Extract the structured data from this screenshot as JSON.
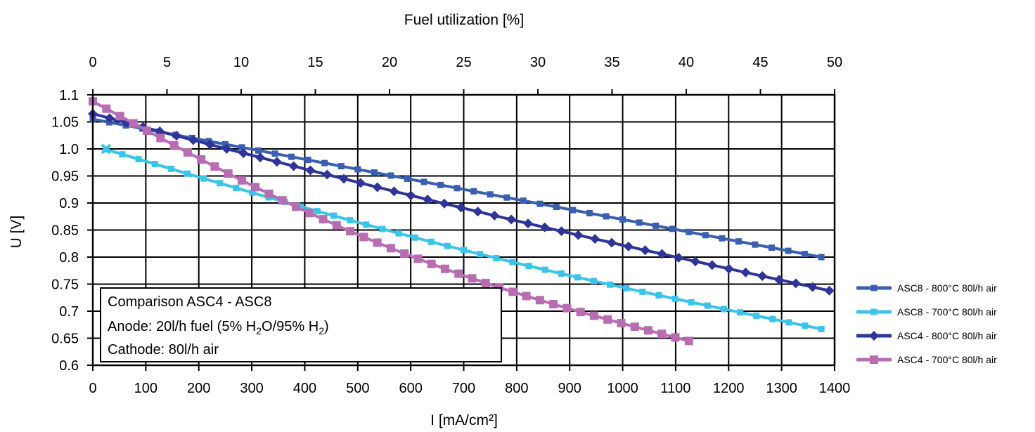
{
  "chart_data": {
    "type": "line",
    "title": "",
    "xlabel": "I [mA/cm²]",
    "x2label": "Fuel utilization [%]",
    "ylabel": "U [V]",
    "xlim": [
      0,
      1400
    ],
    "x2lim": [
      0,
      50
    ],
    "ylim": [
      0.6,
      1.1
    ],
    "x_ticks": [
      "0",
      "100",
      "200",
      "300",
      "400",
      "500",
      "600",
      "700",
      "800",
      "900",
      "1000",
      "1100",
      "1200",
      "1300",
      "1400"
    ],
    "x2_ticks": [
      "0",
      "5",
      "10",
      "15",
      "20",
      "25",
      "30",
      "35",
      "40",
      "45",
      "50"
    ],
    "y_ticks": [
      "0.6",
      "0.65",
      "0.7",
      "0.75",
      "0.8",
      "0.85",
      "0.9",
      "0.95",
      "1.0",
      "1.05",
      "1.1"
    ],
    "grid": true,
    "legend_position": "right",
    "annotation": {
      "line1": "Comparison ASC4 - ASC8",
      "line2_prefix": "Anode: 20l/h fuel (5% H",
      "line2_sub1": "2",
      "line2_mid": "O/95% H",
      "line2_sub2": "2",
      "line2_suffix": ")",
      "line3": "Cathode: 80l/h air"
    },
    "series": [
      {
        "name": "ASC8 - 800°C 80l/h air",
        "color": "#3b5fb0",
        "marker": "square-small",
        "x": [
          0,
          1375
        ],
        "y": [
          1.055,
          0.8
        ],
        "curvature": 0.0
      },
      {
        "name": "ASC8 - 700°C 80l/h air",
        "color": "#3cc3ea",
        "marker": "square-small",
        "x": [
          25,
          1375
        ],
        "y": [
          0.999,
          0.667
        ],
        "curvature": 0.02,
        "extra_points": [
          {
            "x": 25,
            "y": 1.0,
            "marker": "x-cross"
          }
        ]
      },
      {
        "name": "ASC4 - 800°C 80l/h air",
        "color": "#2f3598",
        "marker": "diamond",
        "x": [
          0,
          1390
        ],
        "y": [
          1.065,
          0.738
        ],
        "curvature": 0.01
      },
      {
        "name": "ASC4 - 700°C 80l/h air",
        "color": "#b86db3",
        "marker": "square-large",
        "x": [
          0,
          1125
        ],
        "y": [
          1.088,
          0.645
        ],
        "curvature": 0.05
      }
    ]
  }
}
